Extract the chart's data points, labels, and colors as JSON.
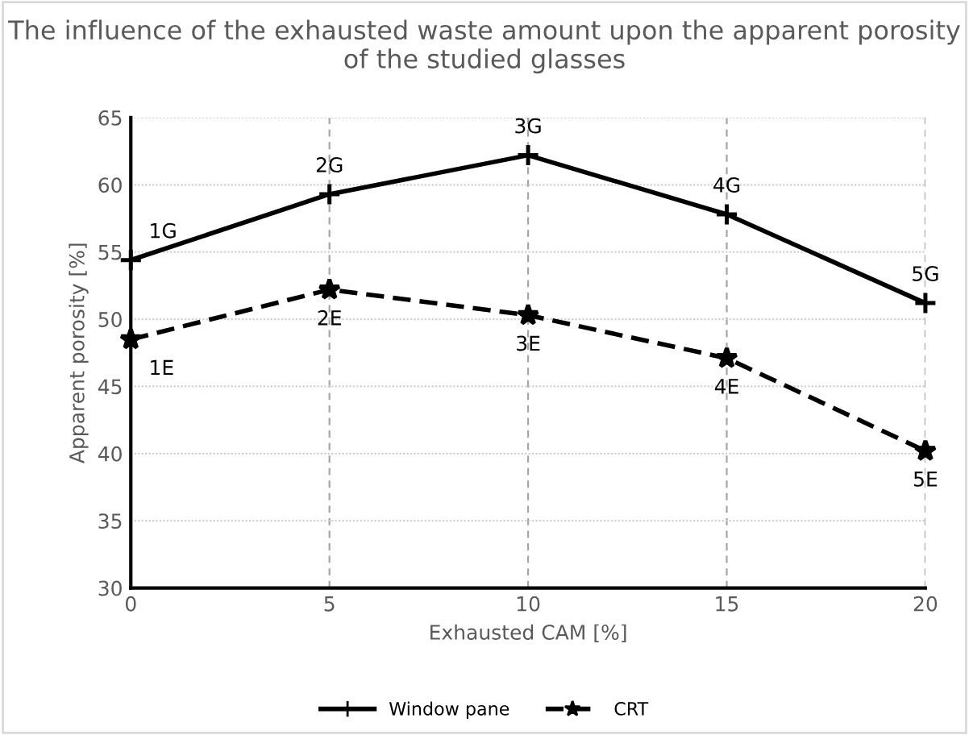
{
  "chart_data": {
    "type": "line",
    "title": "The influence of the exhausted waste amount upon the apparent porosity of the studied glasses",
    "xlabel": "Exhausted CAM [%]",
    "ylabel": "Apparent porosity [%]",
    "x": [
      0,
      5,
      10,
      15,
      20
    ],
    "series": [
      {
        "name": "Window pane",
        "color": "#000000",
        "values": [
          54.4,
          59.3,
          62.2,
          57.8,
          51.2
        ],
        "marker": "cross",
        "line_style": "solid"
      },
      {
        "name": "CRT",
        "color": "#000000",
        "values": [
          48.5,
          52.2,
          50.3,
          47.1,
          40.2
        ],
        "marker": "star",
        "line_style": "dashed"
      }
    ],
    "xlim": [
      0,
      20
    ],
    "xticks": [
      0,
      5,
      10,
      15,
      20
    ],
    "ylim": [
      30,
      65
    ],
    "yticks": [
      30,
      35,
      40,
      45,
      50,
      55,
      60,
      65
    ],
    "grid": true,
    "legend": "bottom",
    "annotations": [
      {
        "text": "1G",
        "x": 0,
        "y": 54.4
      },
      {
        "text": "2G",
        "x": 5,
        "y": 59.3
      },
      {
        "text": "3G",
        "x": 10,
        "y": 62.2
      },
      {
        "text": "4G",
        "x": 15,
        "y": 57.8
      },
      {
        "text": "5G",
        "x": 20,
        "y": 51.2
      },
      {
        "text": "1E",
        "x": 0,
        "y": 48.5
      },
      {
        "text": "2E",
        "x": 5,
        "y": 52.2
      },
      {
        "text": "3E",
        "x": 10,
        "y": 50.3
      },
      {
        "text": "4E",
        "x": 15,
        "y": 47.1
      },
      {
        "text": "5E",
        "x": 20,
        "y": 40.2
      }
    ]
  }
}
